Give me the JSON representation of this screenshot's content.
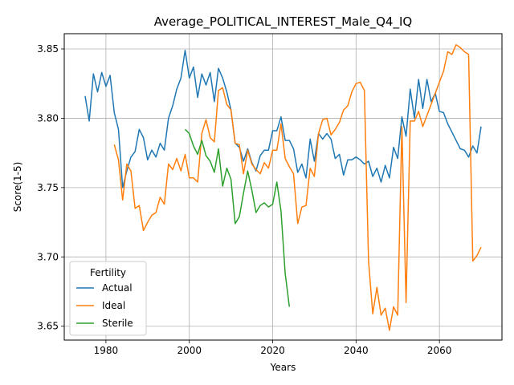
{
  "chart_data": {
    "type": "line",
    "title": "Average_POLITICAL_INTEREST_Male_Q4_IQ",
    "xlabel": "Years",
    "ylabel": "Score(1-5)",
    "xlim": [
      1970,
      2075
    ],
    "ylim": [
      3.64,
      3.861
    ],
    "xticks": [
      1980,
      2000,
      2020,
      2040,
      2060
    ],
    "yticks": [
      3.65,
      3.7,
      3.75,
      3.8,
      3.85
    ],
    "xtick_labels": [
      "1980",
      "2000",
      "2020",
      "2040",
      "2060"
    ],
    "ytick_labels": [
      "3.65",
      "3.70",
      "3.75",
      "3.80",
      "3.85"
    ],
    "grid": true,
    "legend": {
      "title": "Fertility",
      "placement": "lower-left"
    },
    "series": [
      {
        "name": "Actual",
        "color": "#1f77b4",
        "x": [
          1975,
          1976,
          1977,
          1978,
          1979,
          1980,
          1981,
          1982,
          1983,
          1984,
          1985,
          1986,
          1987,
          1988,
          1989,
          1990,
          1991,
          1992,
          1993,
          1994,
          1995,
          1996,
          1997,
          1998,
          1999,
          2000,
          2001,
          2002,
          2003,
          2004,
          2005,
          2006,
          2007,
          2008,
          2009,
          2010,
          2011,
          2012,
          2013,
          2014,
          2015,
          2016,
          2017,
          2018,
          2019,
          2020,
          2021,
          2022,
          2023,
          2024,
          2025,
          2026,
          2027,
          2028,
          2029,
          2030,
          2031,
          2032,
          2033,
          2034,
          2035,
          2036,
          2037,
          2038,
          2039,
          2040,
          2041,
          2042,
          2043,
          2044,
          2045,
          2046,
          2047,
          2048,
          2049,
          2050,
          2051,
          2052,
          2053,
          2054,
          2055,
          2056,
          2057,
          2058,
          2059,
          2060,
          2061,
          2062,
          2063,
          2064,
          2065,
          2066,
          2067,
          2068,
          2069,
          2070
        ],
        "y": [
          3.816,
          3.798,
          3.832,
          3.819,
          3.833,
          3.823,
          3.831,
          3.804,
          3.792,
          3.75,
          3.762,
          3.772,
          3.776,
          3.792,
          3.786,
          3.77,
          3.777,
          3.772,
          3.782,
          3.777,
          3.8,
          3.809,
          3.821,
          3.829,
          3.849,
          3.829,
          3.837,
          3.815,
          3.832,
          3.824,
          3.833,
          3.812,
          3.836,
          3.829,
          3.819,
          3.806,
          3.782,
          3.779,
          3.769,
          3.778,
          3.768,
          3.762,
          3.773,
          3.777,
          3.777,
          3.791,
          3.791,
          3.801,
          3.784,
          3.784,
          3.778,
          3.761,
          3.767,
          3.757,
          3.785,
          3.769,
          3.789,
          3.785,
          3.789,
          3.785,
          3.771,
          3.774,
          3.759,
          3.77,
          3.77,
          3.772,
          3.77,
          3.767,
          3.769,
          3.758,
          3.764,
          3.754,
          3.766,
          3.757,
          3.779,
          3.771,
          3.801,
          3.787,
          3.821,
          3.8,
          3.828,
          3.807,
          3.828,
          3.812,
          3.818,
          3.805,
          3.804,
          3.796,
          3.79,
          3.784,
          3.778,
          3.777,
          3.772,
          3.78,
          3.775,
          3.794
        ]
      },
      {
        "name": "Ideal",
        "color": "#ff7f0e",
        "x": [
          1982,
          1983,
          1984,
          1985,
          1986,
          1987,
          1988,
          1989,
          1990,
          1991,
          1992,
          1993,
          1994,
          1995,
          1996,
          1997,
          1998,
          1999,
          2000,
          2001,
          2002,
          2003,
          2004,
          2005,
          2006,
          2007,
          2008,
          2009,
          2010,
          2011,
          2012,
          2013,
          2014,
          2015,
          2016,
          2017,
          2018,
          2019,
          2020,
          2021,
          2022,
          2023,
          2024,
          2025,
          2026,
          2027,
          2028,
          2029,
          2030,
          2031,
          2032,
          2033,
          2034,
          2035,
          2036,
          2037,
          2038,
          2039,
          2040,
          2041,
          2042,
          2043,
          2044,
          2045,
          2046,
          2047,
          2048,
          2049,
          2050,
          2051,
          2052,
          2053,
          2054,
          2055,
          2056,
          2057,
          2058,
          2059,
          2060,
          2061,
          2062,
          2063,
          2064,
          2065,
          2066,
          2067,
          2068,
          2069,
          2070
        ],
        "y": [
          3.781,
          3.77,
          3.741,
          3.767,
          3.762,
          3.735,
          3.737,
          3.719,
          3.725,
          3.73,
          3.732,
          3.743,
          3.738,
          3.767,
          3.763,
          3.771,
          3.762,
          3.774,
          3.757,
          3.757,
          3.754,
          3.789,
          3.799,
          3.786,
          3.783,
          3.82,
          3.822,
          3.81,
          3.806,
          3.782,
          3.781,
          3.76,
          3.777,
          3.767,
          3.763,
          3.76,
          3.768,
          3.764,
          3.777,
          3.777,
          3.796,
          3.771,
          3.765,
          3.76,
          3.724,
          3.736,
          3.737,
          3.764,
          3.758,
          3.789,
          3.799,
          3.8,
          3.788,
          3.792,
          3.797,
          3.806,
          3.809,
          3.819,
          3.825,
          3.826,
          3.82,
          3.697,
          3.659,
          3.678,
          3.658,
          3.663,
          3.647,
          3.664,
          3.658,
          3.794,
          3.667,
          3.798,
          3.798,
          3.805,
          3.794,
          3.802,
          3.81,
          3.818,
          3.826,
          3.834,
          3.848,
          3.846,
          3.853,
          3.851,
          3.848,
          3.846,
          3.697,
          3.701,
          3.707
        ]
      },
      {
        "name": "Sterile",
        "color": "#2ca02c",
        "x": [
          1999,
          2000,
          2001,
          2002,
          2003,
          2004,
          2005,
          2006,
          2007,
          2008,
          2009,
          2010,
          2011,
          2012,
          2013,
          2014,
          2015,
          2016,
          2017,
          2018,
          2019,
          2020,
          2021,
          2022,
          2023,
          2024
        ],
        "y": [
          3.792,
          3.789,
          3.78,
          3.774,
          3.784,
          3.773,
          3.769,
          3.761,
          3.778,
          3.751,
          3.764,
          3.756,
          3.724,
          3.729,
          3.746,
          3.762,
          3.748,
          3.732,
          3.737,
          3.739,
          3.736,
          3.738,
          3.754,
          3.733,
          3.688,
          3.664
        ]
      }
    ]
  }
}
